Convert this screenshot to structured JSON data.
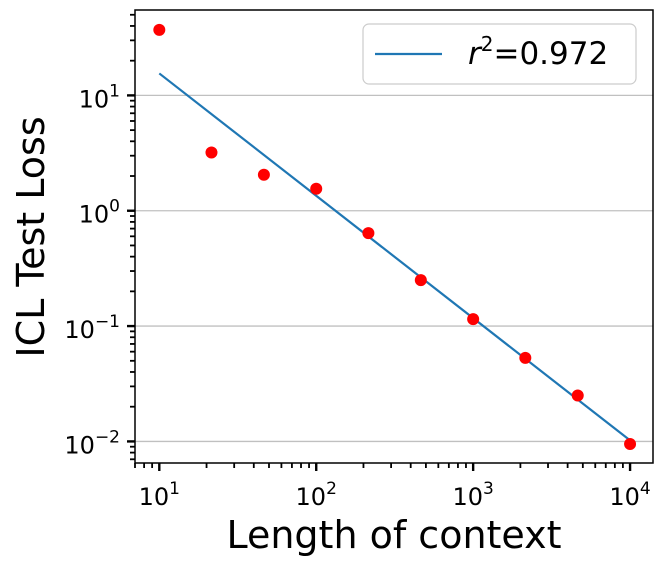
{
  "chart_data": {
    "type": "scatter",
    "xlabel": "Length of context",
    "ylabel": "ICL Test Loss",
    "xscale": "log",
    "yscale": "log",
    "xlim": [
      7,
      14000
    ],
    "ylim": [
      0.0065,
      55
    ],
    "grid": "horizontal major lines",
    "legend_placement": "top-right",
    "x_ticks": [
      {
        "value": 10,
        "base": "10",
        "exp": "1"
      },
      {
        "value": 100,
        "base": "10",
        "exp": "2"
      },
      {
        "value": 1000,
        "base": "10",
        "exp": "3"
      },
      {
        "value": 10000,
        "base": "10",
        "exp": "4"
      }
    ],
    "y_ticks": [
      {
        "value": 0.01,
        "base": "10",
        "exp": "−2"
      },
      {
        "value": 0.1,
        "base": "10",
        "exp": "−1"
      },
      {
        "value": 1,
        "base": "10",
        "exp": "0"
      },
      {
        "value": 10,
        "base": "10",
        "exp": "1"
      }
    ],
    "points": {
      "color": "#ff0000",
      "x": [
        10,
        21.5,
        46.4,
        100,
        215,
        464,
        1000,
        2150,
        4640,
        10000
      ],
      "y": [
        37,
        3.2,
        2.05,
        1.55,
        0.64,
        0.25,
        0.115,
        0.053,
        0.025,
        0.0095
      ]
    },
    "fit_line": {
      "color": "#1f77b4",
      "x": [
        10,
        10000
      ],
      "y": [
        15.5,
        0.0102
      ],
      "legend_label": {
        "r": "r",
        "sup": "2",
        "value": "=0.972"
      }
    }
  }
}
